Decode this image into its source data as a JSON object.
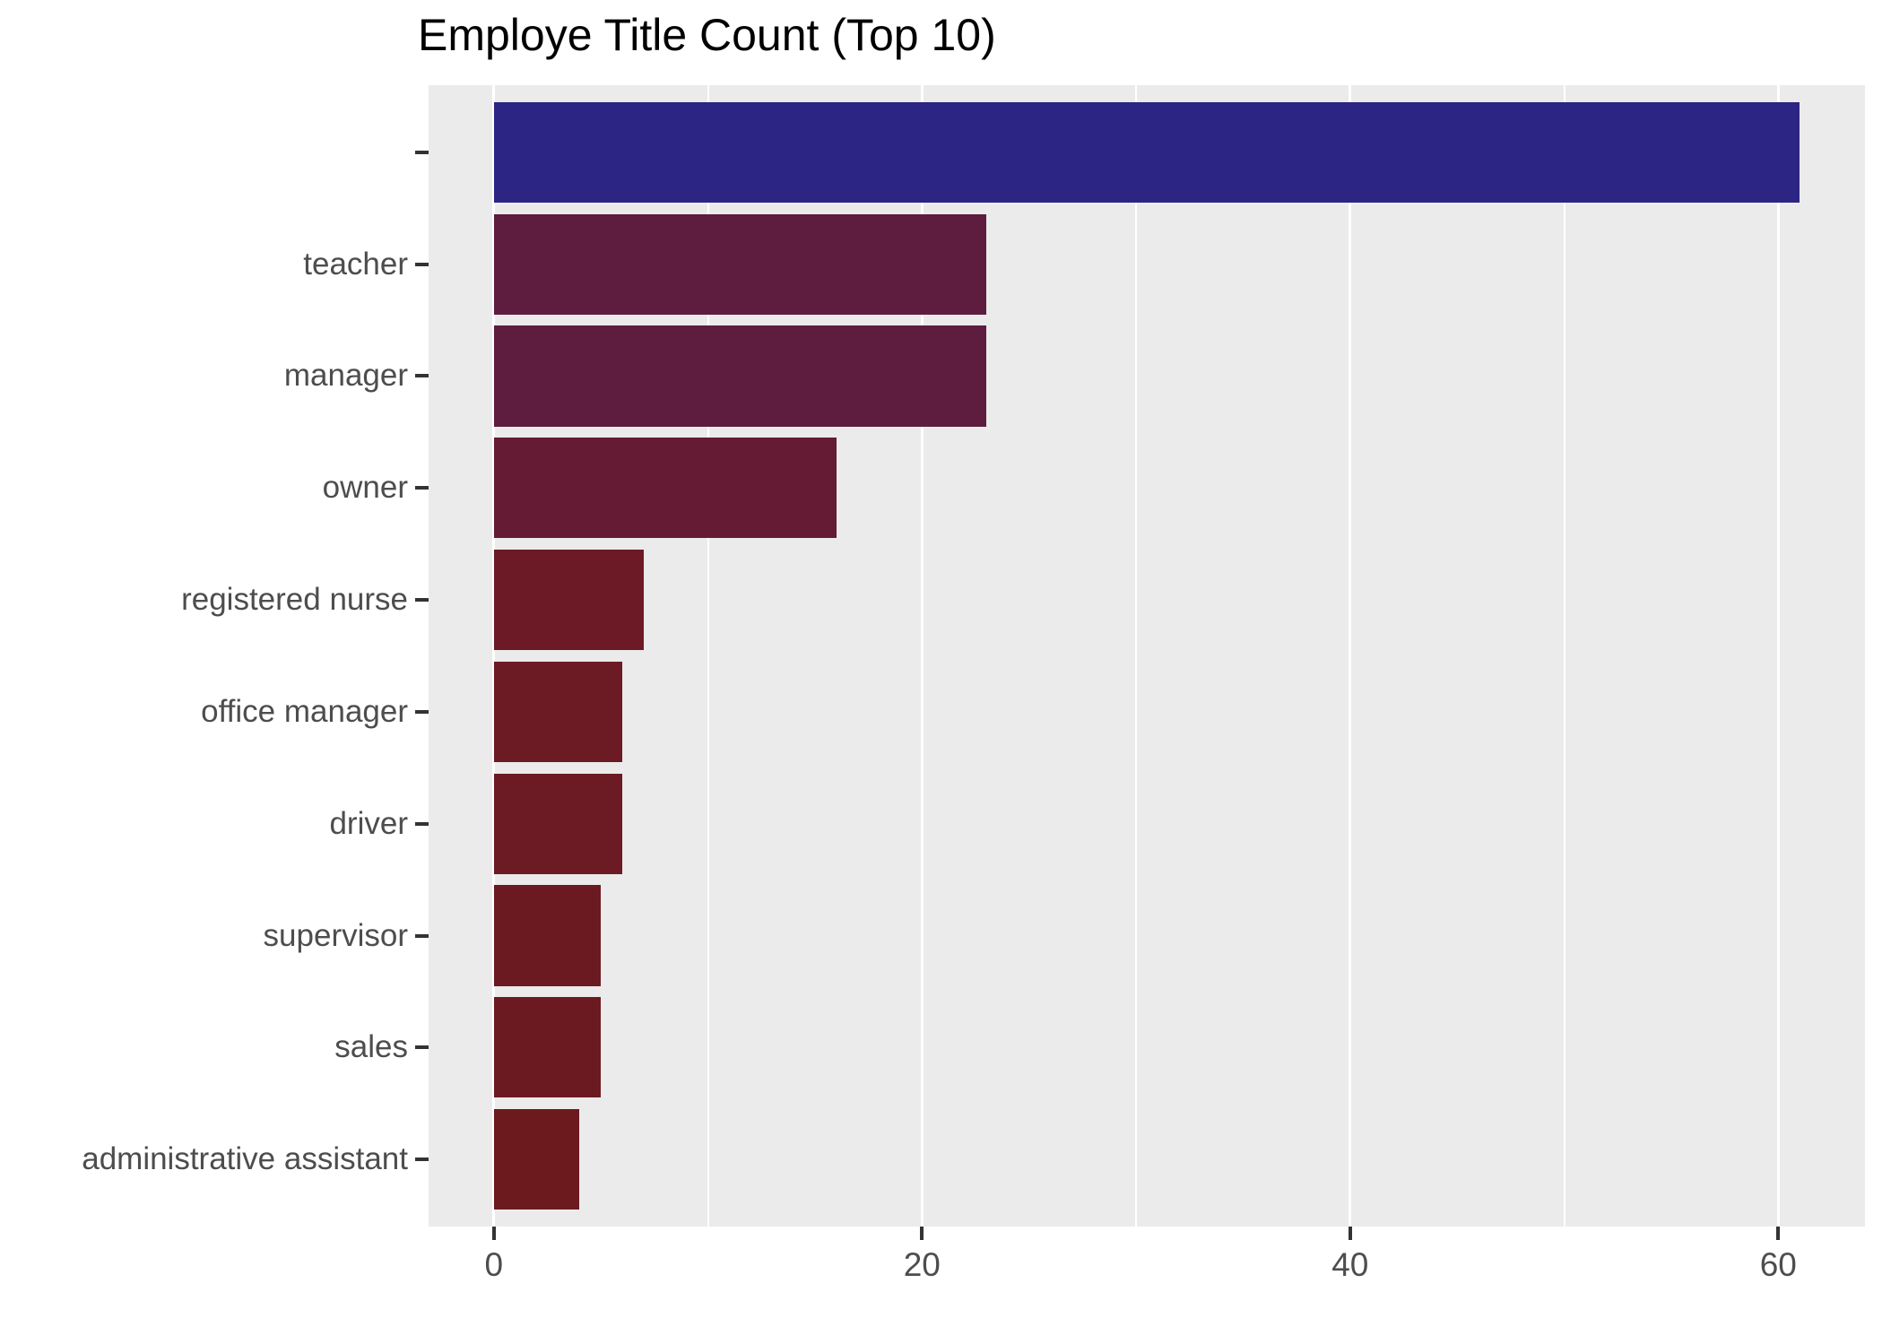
{
  "chart_data": {
    "type": "bar",
    "orientation": "horizontal",
    "title": "Employe Title Count (Top 10)",
    "xlabel": "",
    "ylabel": "",
    "categories": [
      "",
      "teacher",
      "manager",
      "owner",
      "registered nurse",
      "office manager",
      "driver",
      "supervisor",
      "sales",
      "administrative assistant"
    ],
    "values": [
      61,
      23,
      23,
      16,
      7,
      6,
      6,
      5,
      5,
      4
    ],
    "bar_colors": [
      "#2C2583",
      "#5E1C3F",
      "#5E1C3F",
      "#641B33",
      "#6B1A26",
      "#6C1A23",
      "#6C1A23",
      "#6C1A21",
      "#6C1A21",
      "#6C1A1E"
    ],
    "x_axis": {
      "major_ticks": [
        0,
        20,
        40,
        60
      ],
      "major_tick_labels": [
        "0",
        "20",
        "40",
        "60"
      ],
      "minor_ticks": [
        10,
        30,
        50
      ],
      "limits": [
        -3.05,
        64.05
      ]
    },
    "legend": "none",
    "grid": "on",
    "style": {
      "panel_background": "#EBEBEB",
      "grid_color": "#FFFFFF",
      "tick_color": "#333333",
      "axis_label_color": "#4D4D4D",
      "title_color": "#000000",
      "figure_background": "#FFFFFF"
    }
  }
}
